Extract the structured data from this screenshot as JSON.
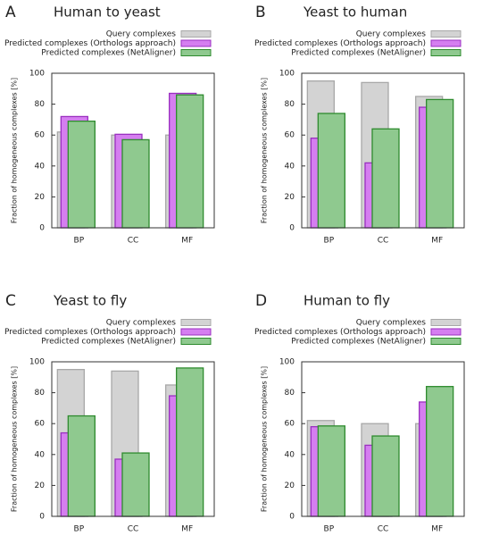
{
  "chart_data": [
    {
      "type": "bar",
      "label": "A",
      "title": "Human to yeast",
      "ylabel": "Fraction of homogeneous complexes [%]",
      "categories": [
        "BP",
        "CC",
        "MF"
      ],
      "ylim": [
        0,
        100
      ],
      "yticks": [
        0,
        20,
        40,
        60,
        80,
        100
      ],
      "legend": "upper right",
      "series": [
        {
          "name": "Query complexes",
          "color": "#d3d3d3",
          "values": [
            62,
            60,
            60
          ]
        },
        {
          "name": "Predicted complexes (Orthologs approach)",
          "color": "#d57ef0",
          "values": [
            72,
            60.5,
            87
          ]
        },
        {
          "name": "Predicted complexes (NetAligner)",
          "color": "#8fc98f",
          "values": [
            69,
            57,
            86
          ]
        }
      ]
    },
    {
      "type": "bar",
      "label": "B",
      "title": "Yeast to human",
      "ylabel": "Fraction of homogeneous complexes [%]",
      "categories": [
        "BP",
        "CC",
        "MF"
      ],
      "ylim": [
        0,
        100
      ],
      "yticks": [
        0,
        20,
        40,
        60,
        80,
        100
      ],
      "legend": "upper right",
      "series": [
        {
          "name": "Query complexes",
          "color": "#d3d3d3",
          "values": [
            95,
            94,
            85
          ]
        },
        {
          "name": "Predicted complexes (Orthologs approach)",
          "color": "#d57ef0",
          "values": [
            58,
            42,
            78
          ]
        },
        {
          "name": "Predicted complexes (NetAligner)",
          "color": "#8fc98f",
          "values": [
            74,
            64,
            83
          ]
        }
      ]
    },
    {
      "type": "bar",
      "label": "C",
      "title": "Yeast to fly",
      "ylabel": "Fraction of homogeneous complexes [%]",
      "categories": [
        "BP",
        "CC",
        "MF"
      ],
      "ylim": [
        0,
        100
      ],
      "yticks": [
        0,
        20,
        40,
        60,
        80,
        100
      ],
      "legend": "upper right",
      "series": [
        {
          "name": "Query complexes",
          "color": "#d3d3d3",
          "values": [
            95,
            94,
            85
          ]
        },
        {
          "name": "Predicted complexes (Orthologs approach)",
          "color": "#d57ef0",
          "values": [
            54,
            37,
            78
          ]
        },
        {
          "name": "Predicted complexes (NetAligner)",
          "color": "#8fc98f",
          "values": [
            65,
            41,
            96
          ]
        }
      ]
    },
    {
      "type": "bar",
      "label": "D",
      "title": "Human to fly",
      "ylabel": "Fraction of homogeneous complexes [%]",
      "categories": [
        "BP",
        "CC",
        "MF"
      ],
      "ylim": [
        0,
        100
      ],
      "yticks": [
        0,
        20,
        40,
        60,
        80,
        100
      ],
      "legend": "upper right",
      "series": [
        {
          "name": "Query complexes",
          "color": "#d3d3d3",
          "values": [
            62,
            60,
            60
          ]
        },
        {
          "name": "Predicted complexes (Orthologs approach)",
          "color": "#d57ef0",
          "values": [
            58,
            46,
            74
          ]
        },
        {
          "name": "Predicted complexes (NetAligner)",
          "color": "#8fc98f",
          "values": [
            58.5,
            52,
            84
          ]
        }
      ]
    }
  ]
}
